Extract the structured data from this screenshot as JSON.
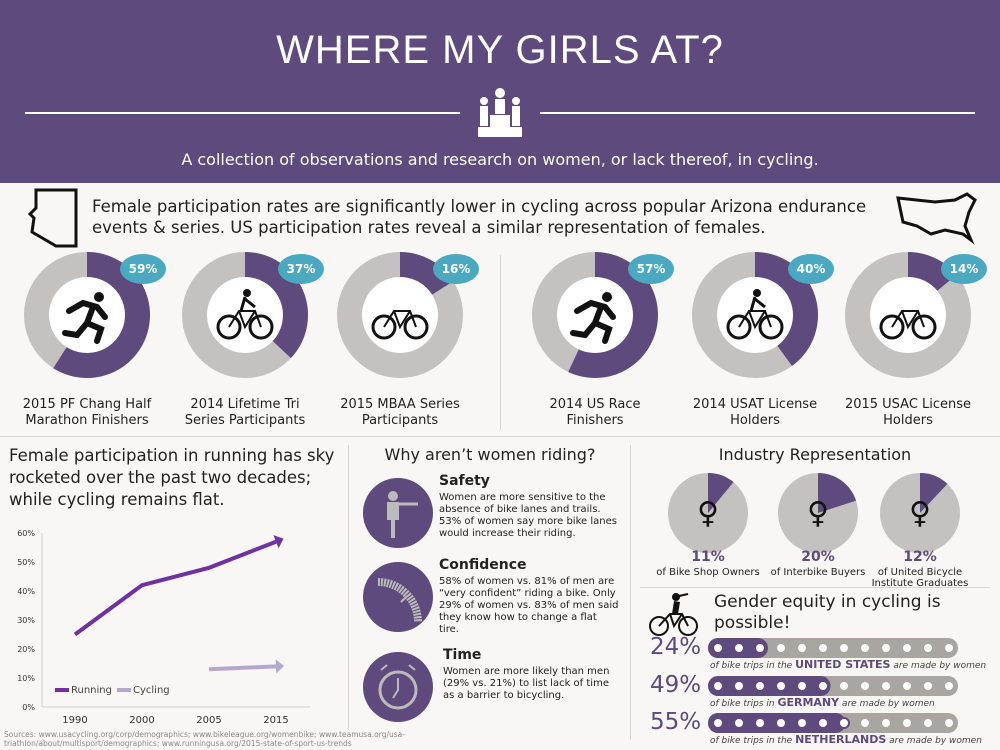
{
  "header": {
    "title": "WHERE MY GIRLS AT?",
    "subtitle": "A collection of observations and research on women, or lack thereof, in cycling."
  },
  "intro": "Female participation rates are significantly lower in cycling across popular Arizona endurance events & series. US participation rates reveal a similar representation of females.",
  "colors": {
    "purple": "#5e4a7c",
    "gray": "#c4c2c0",
    "bubble": "#4aa8c0",
    "line_running": "#7030a0",
    "line_cycling": "#b4a7cd"
  },
  "chart_data": [
    {
      "type": "pie",
      "style": "donut",
      "group": "Arizona",
      "items": [
        {
          "label": "2015 PF Chang Half Marathon Finishers",
          "value": 59,
          "display": "59%",
          "icon": "runner-icon"
        },
        {
          "label": "2014 Lifetime Tri Series Participants",
          "value": 37,
          "display": "37%",
          "icon": "cyclist-icon"
        },
        {
          "label": "2015 MBAA Series Participants",
          "value": 16,
          "display": "16%",
          "icon": "mountain-bike-icon"
        }
      ]
    },
    {
      "type": "pie",
      "style": "donut",
      "group": "US",
      "items": [
        {
          "label": "2014 US Race Finishers",
          "value": 57,
          "display": "57%",
          "icon": "runner-icon"
        },
        {
          "label": "2014 USAT License Holders",
          "value": 40,
          "display": "40%",
          "icon": "cyclist-icon"
        },
        {
          "label": "2015 USAC License Holders",
          "value": 14,
          "display": "14%",
          "icon": "road-bike-icon"
        }
      ]
    },
    {
      "type": "line",
      "title": "Female participation in running has sky rocketed over the past two decades; while cycling remains flat.",
      "categories": [
        "1990",
        "2000",
        "2005",
        "2015"
      ],
      "ylim": [
        0,
        60
      ],
      "yticks": [
        "0%",
        "10%",
        "20%",
        "30%",
        "40%",
        "50%",
        "60%"
      ],
      "series": [
        {
          "name": "Running",
          "values": [
            25,
            42,
            48,
            57
          ]
        },
        {
          "name": "Cycling",
          "values": [
            null,
            null,
            13,
            14
          ]
        }
      ],
      "legend": "bottom-left"
    },
    {
      "type": "pie",
      "title": "Industry Representation",
      "items": [
        {
          "display": "11%",
          "value": 11,
          "label": "of Bike Shop Owners"
        },
        {
          "display": "20%",
          "value": 20,
          "label": "of Interbike Buyers"
        },
        {
          "display": "12%",
          "value": 12,
          "label": "of United Bicycle Institute Graduates"
        }
      ]
    },
    {
      "type": "bar",
      "style": "bike-chain",
      "title": "Gender equity in cycling is possible!",
      "items": [
        {
          "display": "24%",
          "value": 24,
          "pre": "of bike trips in the",
          "country": "UNITED STATES",
          "post": "are made by women"
        },
        {
          "display": "49%",
          "value": 49,
          "pre": "of bike trips in",
          "country": "GERMANY",
          "post": "are made by women"
        },
        {
          "display": "55%",
          "value": 55,
          "pre": "of bike trips in the",
          "country": "NETHERLANDS",
          "post": "are made by women"
        }
      ]
    }
  ],
  "why": {
    "title": "Why aren’t women riding?",
    "reasons": [
      {
        "title": "Safety",
        "text": "Women are more sensitive to the absence of bike lanes and trails. 53% of women say more bike lanes would increase their riding.",
        "icon": "hand-signal-icon"
      },
      {
        "title": "Confidence",
        "text": "58% of women vs. 81% of men are “very confident” riding a bike.  Only 29% of women vs. 83% of men said they know how to change a flat tire.",
        "icon": "tire-icon"
      },
      {
        "title": "Time",
        "text": "Women are more likely than men (29% vs. 21%) to list lack of time as a barrier to bicycling.",
        "icon": "alarm-clock-icon"
      }
    ]
  },
  "sources": "Sources: www.usacycling.org/corp/demographics;  www.bikeleague.org/womenbike;  www.teamusa.org/usa-triathlon/about/multisport/demographics;  www.runningusa.org/2015-state-of-sport-us-trends"
}
